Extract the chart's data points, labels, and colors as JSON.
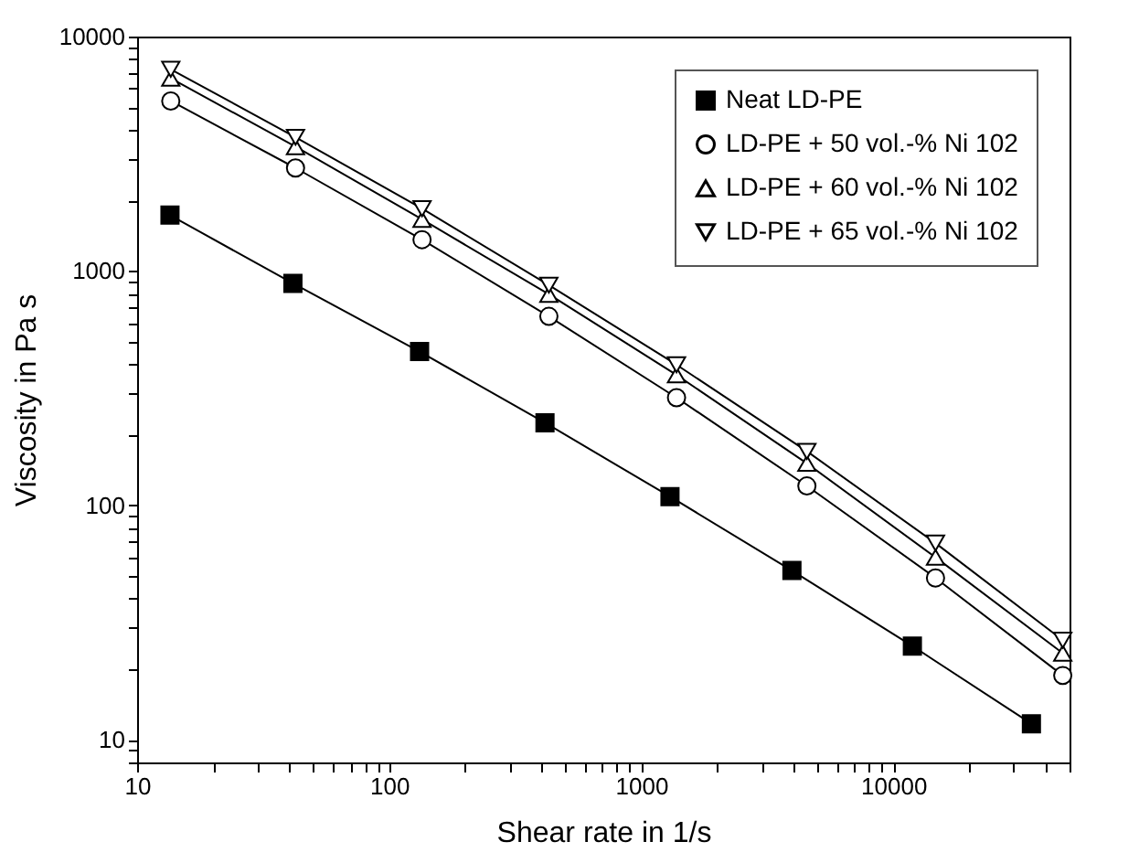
{
  "chart_data": {
    "type": "line",
    "xlabel": "Shear rate in 1/s",
    "ylabel": "Viscosity in Pa s",
    "log": "xy",
    "grid": false,
    "legend": "top right",
    "line_style": "solid",
    "xlim": [
      10,
      50000
    ],
    "ylim": [
      8,
      10000
    ],
    "xticks": [
      10,
      {
        "value": 20,
        "label": null
      },
      {
        "value": 30,
        "label": null
      },
      {
        "value": 40,
        "label": null
      },
      {
        "value": 50,
        "label": null
      },
      {
        "value": 60,
        "label": null
      },
      {
        "value": 70,
        "label": null
      },
      {
        "value": 80,
        "label": null
      },
      {
        "value": 90,
        "label": null
      },
      100,
      {
        "value": 200,
        "label": null
      },
      {
        "value": 300,
        "label": null
      },
      {
        "value": 400,
        "label": null
      },
      {
        "value": 500,
        "label": null
      },
      {
        "value": 600,
        "label": null
      },
      {
        "value": 700,
        "label": null
      },
      {
        "value": 800,
        "label": null
      },
      {
        "value": 900,
        "label": null
      },
      1000,
      {
        "value": 2000,
        "label": null
      },
      {
        "value": 3000,
        "label": null
      },
      {
        "value": 4000,
        "label": null
      },
      {
        "value": 5000,
        "label": null
      },
      {
        "value": 6000,
        "label": null
      },
      {
        "value": 7000,
        "label": null
      },
      {
        "value": 8000,
        "label": null
      },
      {
        "value": 9000,
        "label": null
      },
      10000,
      {
        "value": 20000,
        "label": null
      },
      {
        "value": 30000,
        "label": null
      },
      {
        "value": 40000,
        "label": null
      },
      {
        "value": 50000,
        "label": null
      }
    ],
    "yticks": [
      {
        "value": 8,
        "label": null
      },
      {
        "value": 9,
        "label": null
      },
      10,
      {
        "value": 20,
        "label": null
      },
      {
        "value": 30,
        "label": null
      },
      {
        "value": 40,
        "label": null
      },
      {
        "value": 50,
        "label": null
      },
      {
        "value": 60,
        "label": null
      },
      {
        "value": 70,
        "label": null
      },
      {
        "value": 80,
        "label": null
      },
      {
        "value": 90,
        "label": null
      },
      100,
      {
        "value": 200,
        "label": null
      },
      {
        "value": 300,
        "label": null
      },
      {
        "value": 400,
        "label": null
      },
      {
        "value": 500,
        "label": null
      },
      {
        "value": 600,
        "label": null
      },
      {
        "value": 700,
        "label": null
      },
      {
        "value": 800,
        "label": null
      },
      {
        "value": 900,
        "label": null
      },
      1000,
      {
        "value": 2000,
        "label": null
      },
      {
        "value": 3000,
        "label": null
      },
      {
        "value": 4000,
        "label": null
      },
      {
        "value": 5000,
        "label": null
      },
      {
        "value": 6000,
        "label": null
      },
      {
        "value": 7000,
        "label": null
      },
      {
        "value": 8000,
        "label": null
      },
      {
        "value": 9000,
        "label": null
      },
      10000
    ],
    "series": [
      {
        "name": "Neat LD-PE",
        "color": "#000000",
        "marker": "square",
        "x": [
          13.5,
          41.5,
          132,
          415,
          1300,
          3960,
          11900,
          35300
        ],
        "values": [
          1730,
          885,
          453,
          225,
          109,
          52.7,
          25.1,
          11.7
        ]
      },
      {
        "name": "LD-PE + 50 vol.-% Ni 102",
        "color": "#000000",
        "marker": "circle",
        "x": [
          13.6,
          42.5,
          135,
          430,
          1380,
          4540,
          14700,
          47000
        ],
        "values": [
          5310,
          2750,
          1360,
          640,
          288,
          121,
          49,
          18.8
        ]
      },
      {
        "name": "LD-PE + 60 vol.-% Ni 102",
        "color": "#000000",
        "marker": "triangle",
        "x": [
          13.6,
          42.5,
          135,
          430,
          1380,
          4540,
          14700,
          47000
        ],
        "values": [
          6640,
          3390,
          1660,
          795,
          360,
          151,
          60,
          23.4
        ]
      },
      {
        "name": "LD-PE + 65 vol.-% Ni 102",
        "color": "#000000",
        "marker": "triangle-down",
        "x": [
          13.6,
          42.5,
          135,
          430,
          1380,
          4540,
          14700,
          47000
        ],
        "values": [
          7250,
          3720,
          1845,
          870,
          398,
          170,
          69,
          26.6
        ]
      }
    ]
  }
}
